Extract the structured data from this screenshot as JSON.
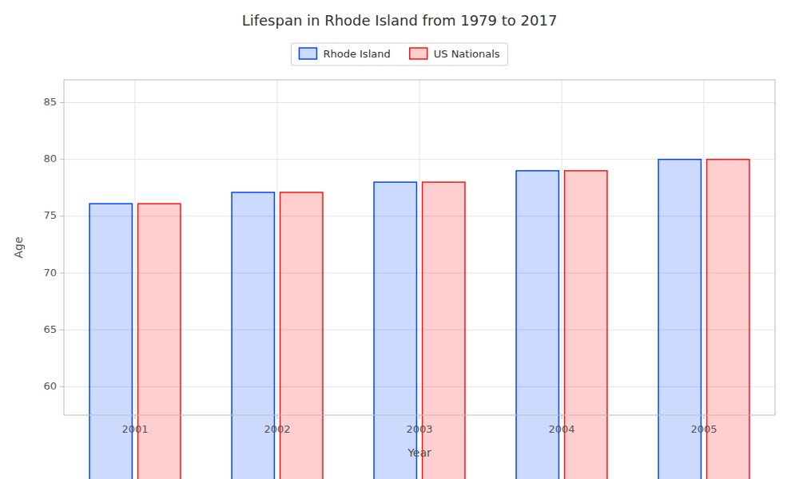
{
  "chart_data": {
    "type": "bar",
    "title": "Lifespan in Rhode Island from 1979 to 2017",
    "xlabel": "Year",
    "ylabel": "Age",
    "categories": [
      "2001",
      "2002",
      "2003",
      "2004",
      "2005"
    ],
    "series": [
      {
        "name": "Rhode Island",
        "color": "#0044ff",
        "values": [
          76.1,
          77.1,
          78.0,
          79.0,
          80.0
        ]
      },
      {
        "name": "US Nationals",
        "color": "#ff1111",
        "values": [
          76.1,
          77.1,
          78.0,
          79.0,
          80.0
        ]
      }
    ],
    "ylim": [
      57.5,
      87
    ],
    "yticks": [
      60,
      65,
      70,
      75,
      80,
      85
    ],
    "grid": true,
    "legend": "top"
  }
}
